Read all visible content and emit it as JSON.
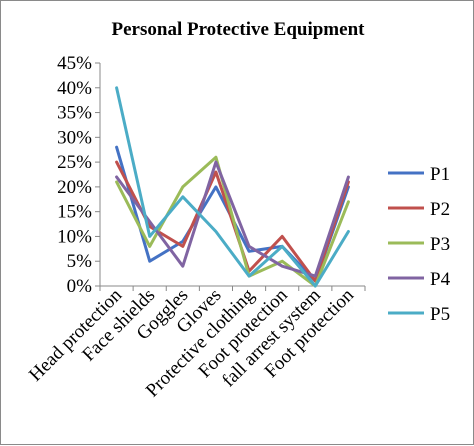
{
  "chart_data": {
    "type": "line",
    "title": "Personal Protective Equipment",
    "categories": [
      "Head protection",
      "Face shields",
      "Goggles",
      "Gloves",
      "Protective clothing",
      "Foot protection",
      "fall arrest system",
      "Foot protection"
    ],
    "y_ticks": [
      "0%",
      "5%",
      "10%",
      "15%",
      "20%",
      "25%",
      "30%",
      "35%",
      "40%",
      "45%"
    ],
    "ylim": [
      0,
      0.45
    ],
    "grid": false,
    "legend_position": "right",
    "series": [
      {
        "name": "P1",
        "color": "#4472c4",
        "values": [
          0.28,
          0.05,
          0.09,
          0.2,
          0.07,
          0.08,
          0.01,
          0.2
        ]
      },
      {
        "name": "P2",
        "color": "#c0504d",
        "values": [
          0.25,
          0.12,
          0.08,
          0.23,
          0.03,
          0.1,
          0.01,
          0.21
        ]
      },
      {
        "name": "P3",
        "color": "#9bbb59",
        "values": [
          0.21,
          0.08,
          0.2,
          0.26,
          0.02,
          0.05,
          0.0,
          0.17
        ]
      },
      {
        "name": "P4",
        "color": "#8064a2",
        "values": [
          0.22,
          0.13,
          0.04,
          0.25,
          0.08,
          0.04,
          0.02,
          0.22
        ]
      },
      {
        "name": "P5",
        "color": "#4bacc6",
        "values": [
          0.4,
          0.1,
          0.18,
          0.11,
          0.02,
          0.08,
          0.0,
          0.11
        ]
      }
    ]
  }
}
